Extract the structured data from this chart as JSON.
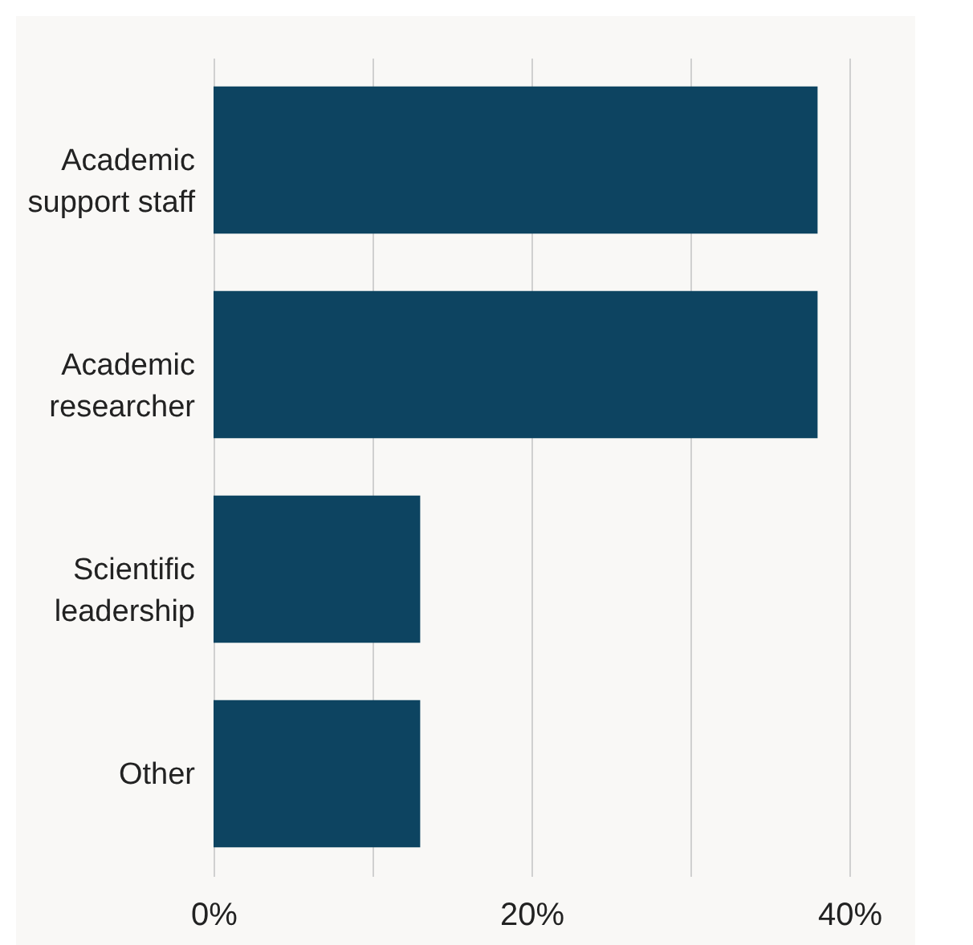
{
  "chart_data": {
    "type": "bar",
    "orientation": "horizontal",
    "categories": [
      "Academic support staff",
      "Academic researcher",
      "Scientific leadership",
      "Other"
    ],
    "values": [
      38,
      38,
      13,
      13
    ],
    "color": "#0d4461",
    "xlim": [
      0,
      40
    ],
    "xticks": [
      {
        "value": 0,
        "label": "0%"
      },
      {
        "value": 10,
        "label": null
      },
      {
        "value": 20,
        "label": "20%"
      },
      {
        "value": 30,
        "label": null
      },
      {
        "value": 40,
        "label": "40%"
      }
    ],
    "grid": "x"
  }
}
